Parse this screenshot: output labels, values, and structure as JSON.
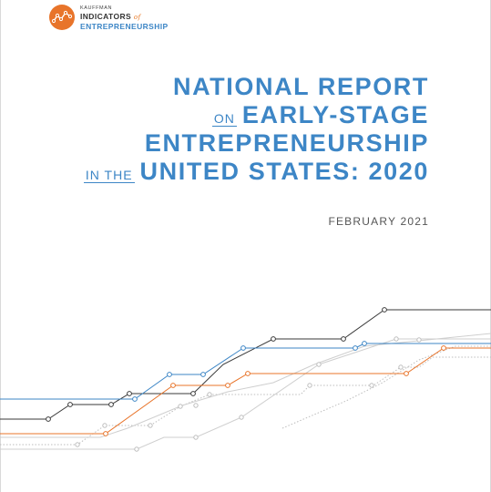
{
  "logo": {
    "small": "KAUFFMAN",
    "line1": "INDICATORS",
    "of": "of",
    "line2": "ENTREPRENEURSHIP",
    "mark_color": "#e8742a"
  },
  "title": {
    "line1": "NATIONAL REPORT",
    "line2_small": "ON",
    "line2": "EARLY-STAGE",
    "line3": "ENTREPRENEURSHIP",
    "line4_small": "IN THE",
    "line4": "UNITED STATES: 2020"
  },
  "date": "FEBRUARY 2021",
  "colors": {
    "title": "#3d86c6",
    "line_dark": "#3a3a3a",
    "line_blue": "#3d86c6",
    "line_orange": "#e8742a",
    "line_gray": "#bdbdbd"
  }
}
